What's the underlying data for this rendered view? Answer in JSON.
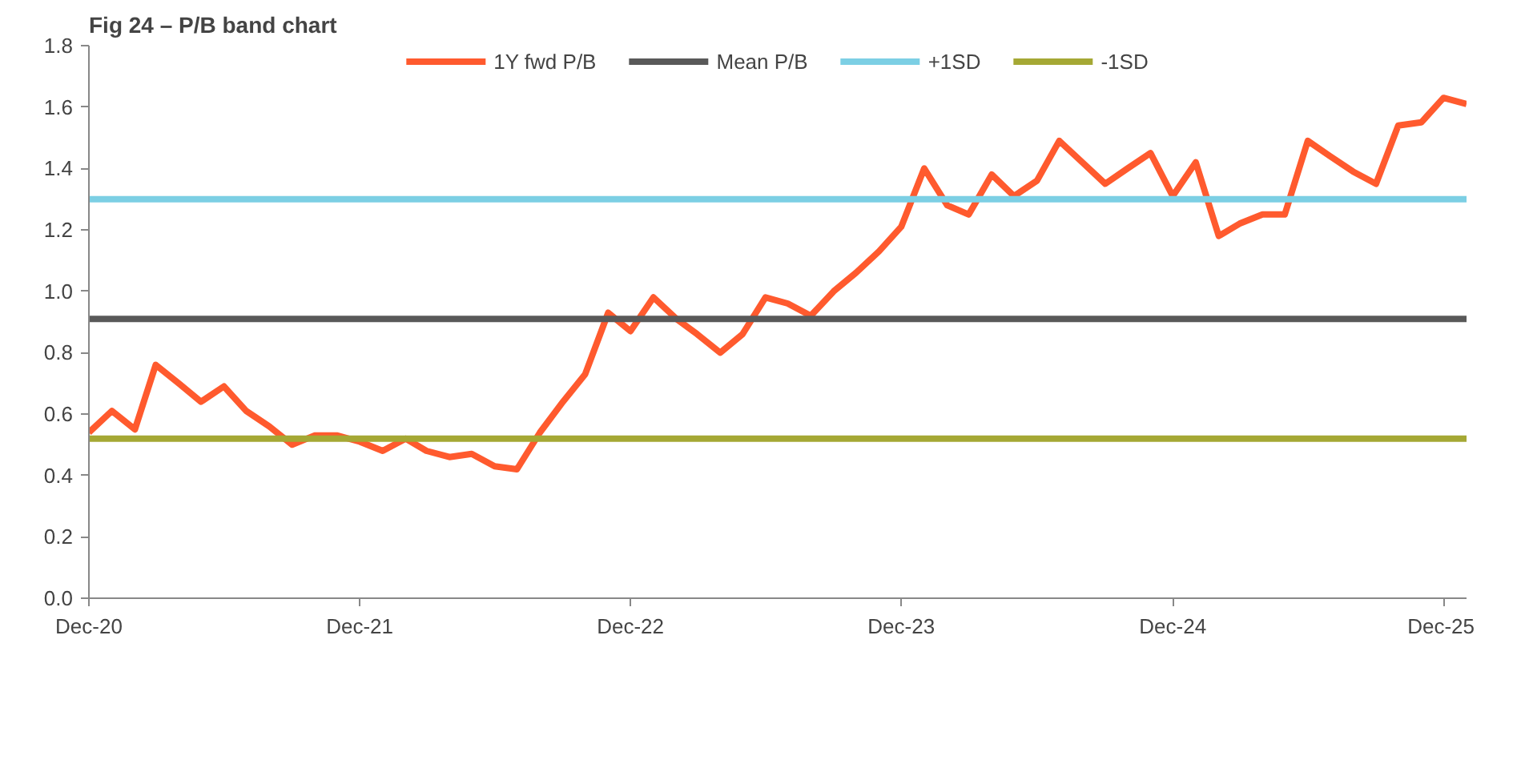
{
  "chart_data": {
    "type": "line",
    "title": "Fig 24 – P/B band chart",
    "x": [
      "2020-12",
      "2021-01",
      "2021-02",
      "2021-03",
      "2021-04",
      "2021-05",
      "2021-06",
      "2021-07",
      "2021-08",
      "2021-09",
      "2021-10",
      "2021-11",
      "2021-12",
      "2022-01",
      "2022-02",
      "2022-03",
      "2022-04",
      "2022-05",
      "2022-06",
      "2022-07",
      "2022-08",
      "2022-09",
      "2022-10",
      "2022-11",
      "2022-12",
      "2023-01",
      "2023-02",
      "2023-03",
      "2023-04",
      "2023-05",
      "2023-06",
      "2023-07",
      "2023-08",
      "2023-09",
      "2023-10",
      "2023-11",
      "2023-12",
      "2024-01",
      "2024-02",
      "2024-03",
      "2024-04",
      "2024-05",
      "2024-06",
      "2024-07",
      "2024-08",
      "2024-09",
      "2024-10",
      "2024-11",
      "2024-12",
      "2025-01",
      "2025-02",
      "2025-03",
      "2025-04",
      "2025-05",
      "2025-06",
      "2025-07",
      "2025-08",
      "2025-09",
      "2025-10",
      "2025-11",
      "2025-12",
      "2026-01"
    ],
    "series": [
      {
        "name": "1Y fwd P/B",
        "color": "#ff5a2e",
        "values": [
          0.54,
          0.61,
          0.55,
          0.76,
          0.7,
          0.64,
          0.69,
          0.61,
          0.56,
          0.5,
          0.53,
          0.53,
          0.51,
          0.48,
          0.52,
          0.48,
          0.46,
          0.47,
          0.43,
          0.42,
          0.54,
          0.64,
          0.73,
          0.93,
          0.87,
          0.98,
          0.91,
          0.86,
          0.8,
          0.86,
          0.98,
          0.96,
          0.92,
          1.0,
          1.06,
          1.13,
          1.21,
          1.4,
          1.28,
          1.25,
          1.38,
          1.31,
          1.36,
          1.49,
          1.42,
          1.35,
          1.4,
          1.45,
          1.31,
          1.42,
          1.18,
          1.22,
          1.25,
          1.25,
          1.49,
          1.44,
          1.39,
          1.35,
          1.54,
          1.55,
          1.63,
          1.61
        ]
      }
    ],
    "ref_lines": [
      {
        "axis": "y",
        "value": 0.91,
        "label": "Mean P/B",
        "color": "#595959"
      },
      {
        "axis": "y",
        "value": 1.3,
        "label": "+1SD",
        "color": "#7ccfe4"
      },
      {
        "axis": "y",
        "value": 0.52,
        "label": "-1SD",
        "color": "#a5a834"
      }
    ],
    "xlim": [
      "2020-12",
      "2026-01"
    ],
    "xticks": [
      {
        "value": "2020-12",
        "label": "Dec-20"
      },
      {
        "value": "2021-12",
        "label": "Dec-21"
      },
      {
        "value": "2022-12",
        "label": "Dec-22"
      },
      {
        "value": "2023-12",
        "label": "Dec-23"
      },
      {
        "value": "2024-12",
        "label": "Dec-24"
      },
      {
        "value": "2025-12",
        "label": "Dec-25"
      }
    ],
    "ylim": [
      0,
      1.8
    ],
    "yticks": [
      {
        "value": 0,
        "label": "0.0"
      },
      0.2,
      0.4,
      0.6,
      0.8,
      {
        "value": 1,
        "label": "1.0"
      },
      1.2,
      1.4,
      1.6,
      1.8
    ],
    "legend": "top",
    "grid": false,
    "marker": "none",
    "line_style": "solid"
  }
}
